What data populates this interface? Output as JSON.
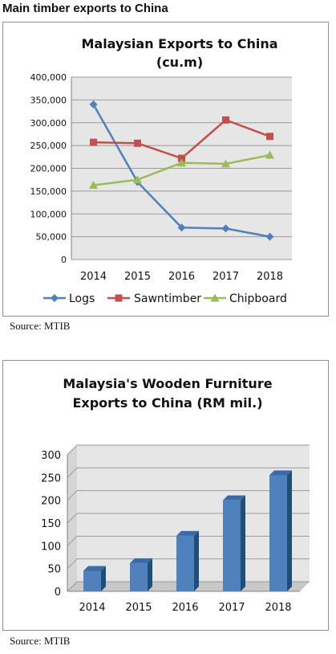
{
  "page": {
    "heading": "Main timber exports to China",
    "source_1": "Source: MTIB",
    "source_2": "Source: MTIB"
  },
  "colors": {
    "plot_bg": "#e6e6e6",
    "logs": "#4f81bd",
    "sawntimber": "#c0504d",
    "chipboard": "#9bbb59",
    "bar_front": "#4f81bd",
    "bar_side": "#1f4e79",
    "bar_top": "#3a6aa8",
    "grid": "#9a9a9a"
  },
  "chart_data": [
    {
      "type": "line",
      "title_line1": "Malaysian Exports to China",
      "title_line2": "(cu.m)",
      "categories": [
        "2014",
        "2015",
        "2016",
        "2017",
        "2018"
      ],
      "y_ticks": [
        "400,000",
        "350,000",
        "300,000",
        "250,000",
        "200,000",
        "150,000",
        "100,000",
        "50,000",
        "0"
      ],
      "ylim": [
        0,
        400000
      ],
      "grid": true,
      "legend_position": "bottom",
      "series": [
        {
          "name": "Logs",
          "values": [
            340000,
            170000,
            70000,
            68000,
            50000
          ]
        },
        {
          "name": "Sawntimber",
          "values": [
            257000,
            255000,
            222000,
            306000,
            270000
          ]
        },
        {
          "name": "Chipboard",
          "values": [
            163000,
            175000,
            212000,
            210000,
            229000
          ]
        }
      ]
    },
    {
      "type": "bar",
      "title_line1": "Malaysia's Wooden Furniture",
      "title_line2": "Exports to China (RM mil.)",
      "categories": [
        "2014",
        "2015",
        "2016",
        "2017",
        "2018"
      ],
      "y_ticks": [
        "300",
        "250",
        "200",
        "150",
        "100",
        "50",
        "0"
      ],
      "ylim": [
        0,
        300
      ],
      "grid": true,
      "values": [
        45,
        62,
        122,
        200,
        255
      ]
    }
  ]
}
